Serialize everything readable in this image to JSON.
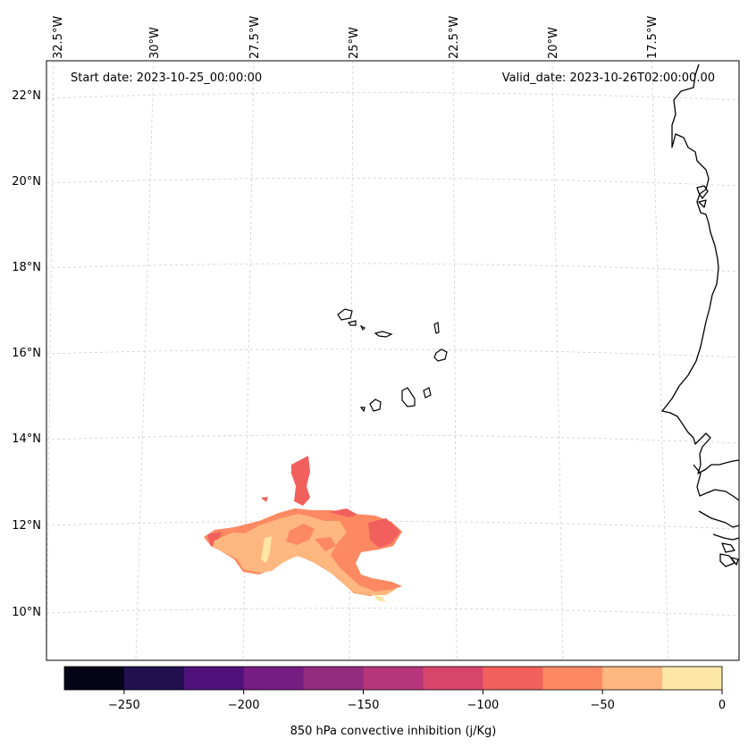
{
  "map": {
    "start_date": "Start date: 2023-10-25_00:00:00",
    "valid_date": "Valid_date: 2023-10-26T02:00:00.00",
    "lon_labels": [
      "32.5°W",
      "30°W",
      "27.5°W",
      "25°W",
      "22.5°W",
      "20°W",
      "17.5°W"
    ],
    "lat_labels": [
      "22°N",
      "20°N",
      "18°N",
      "16°N",
      "14°N",
      "12°N",
      "10°N"
    ]
  },
  "colorbar": {
    "label": "850 hPa convective inhibition (j/Kg)",
    "tick_labels": [
      "−250",
      "−200",
      "−150",
      "−100",
      "−50",
      "0"
    ],
    "colors": [
      "#050416",
      "#221150",
      "#4e117b",
      "#751d81",
      "#942c80",
      "#b5367a",
      "#d8456c",
      "#f1605d",
      "#fc8961",
      "#feb77e",
      "#fde7a6"
    ]
  }
}
